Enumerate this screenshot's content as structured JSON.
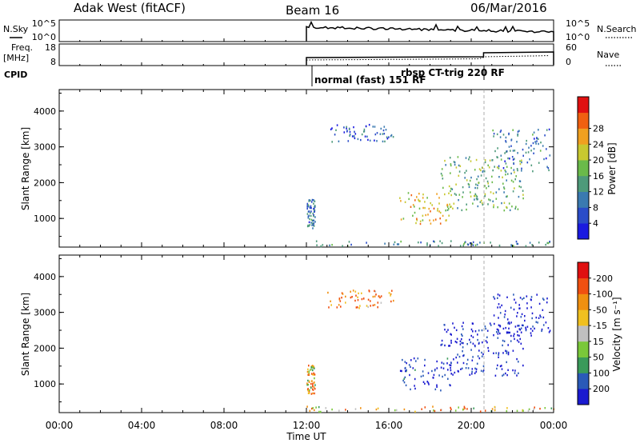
{
  "header": {
    "station": "Adak West (fitACF)",
    "beam": "Beam 16",
    "date": "06/Mar/2016"
  },
  "top_panels": {
    "nsky_label": "N.Sky",
    "nsky_ticks": [
      "10^5",
      "10^0"
    ],
    "nsearch_label": "N.Search",
    "nsearch_ticks": [
      "10^5",
      "10^0"
    ],
    "freq_label": "Freq.",
    "freq_unit": "[MHz]",
    "freq_ticks": [
      "18",
      "8"
    ],
    "nave_label": "Nave",
    "nave_ticks": [
      "60",
      "0"
    ],
    "cpid_label": "CPID",
    "cpid_modes": [
      {
        "name": "normal (fast) 151 RF",
        "start_hour": 12.0
      },
      {
        "name": "rbsp CT-trig 220 RF",
        "start_hour": 20.6
      }
    ]
  },
  "chart_data": [
    {
      "type": "heatmap",
      "name": "power",
      "ylabel": "Slant Range [km]",
      "yticks": [
        "1000",
        "2000",
        "3000",
        "4000"
      ],
      "ylim": [
        200,
        4600
      ],
      "xlim": [
        0,
        24
      ],
      "colorbar_label": "Power [dB]",
      "colorbar_ticks": [
        "4",
        "8",
        "12",
        "16",
        "20",
        "24",
        "28"
      ],
      "colorbar_colors": [
        "#1a1ae0",
        "#2a4cc8",
        "#3a7ab0",
        "#4e9a7a",
        "#6aba4a",
        "#c8c830",
        "#f0a020",
        "#f06010",
        "#e01010"
      ],
      "data_start_hour": 12.0,
      "features": [
        {
          "hours": [
            12.0,
            12.4
          ],
          "range_km": [
            700,
            1500
          ],
          "power_db": 8
        },
        {
          "hours": [
            13.0,
            16.2
          ],
          "range_km": [
            3100,
            3600
          ],
          "power_db": 6
        },
        {
          "hours": [
            16.5,
            19.0
          ],
          "range_km": [
            800,
            1700
          ],
          "power_db": 22
        },
        {
          "hours": [
            18.5,
            22.5
          ],
          "range_km": [
            1200,
            2700
          ],
          "power_db": 14
        },
        {
          "hours": [
            21.0,
            23.8
          ],
          "range_km": [
            2300,
            3500
          ],
          "power_db": 8
        },
        {
          "hours": [
            12.0,
            24.0
          ],
          "range_km": [
            200,
            350
          ],
          "power_db": 10
        }
      ]
    },
    {
      "type": "heatmap",
      "name": "velocity",
      "ylabel": "Slant Range [km]",
      "yticks": [
        "1000",
        "2000",
        "3000",
        "4000"
      ],
      "ylim": [
        200,
        4600
      ],
      "xlim": [
        0,
        24
      ],
      "xticks": [
        "00:00",
        "04:00",
        "08:00",
        "12:00",
        "16:00",
        "20:00",
        "00:00"
      ],
      "xlabel": "Time UT",
      "colorbar_label": "Velocity [m s⁻¹]",
      "colorbar_ticks": [
        "200",
        "100",
        "50",
        "15",
        "-15",
        "-50",
        "-100",
        "-200"
      ],
      "colorbar_colors": [
        "#1a1ad0",
        "#2a5ab8",
        "#3a9a5a",
        "#7ac83a",
        "#c0c0c0",
        "#f0c020",
        "#f09010",
        "#f05010",
        "#e01010"
      ],
      "data_start_hour": 12.0,
      "features": [
        {
          "hours": [
            12.0,
            12.4
          ],
          "range_km": [
            700,
            1500
          ],
          "velocity": -30
        },
        {
          "hours": [
            13.0,
            16.2
          ],
          "range_km": [
            3100,
            3600
          ],
          "velocity": -80
        },
        {
          "hours": [
            16.5,
            19.0
          ],
          "range_km": [
            800,
            1700
          ],
          "velocity": 150
        },
        {
          "hours": [
            18.5,
            22.5
          ],
          "range_km": [
            1200,
            2700
          ],
          "velocity": 180
        },
        {
          "hours": [
            21.0,
            23.8
          ],
          "range_km": [
            2300,
            3500
          ],
          "velocity": 200
        },
        {
          "hours": [
            12.0,
            24.0
          ],
          "range_km": [
            200,
            350
          ],
          "velocity": -40
        }
      ]
    }
  ]
}
